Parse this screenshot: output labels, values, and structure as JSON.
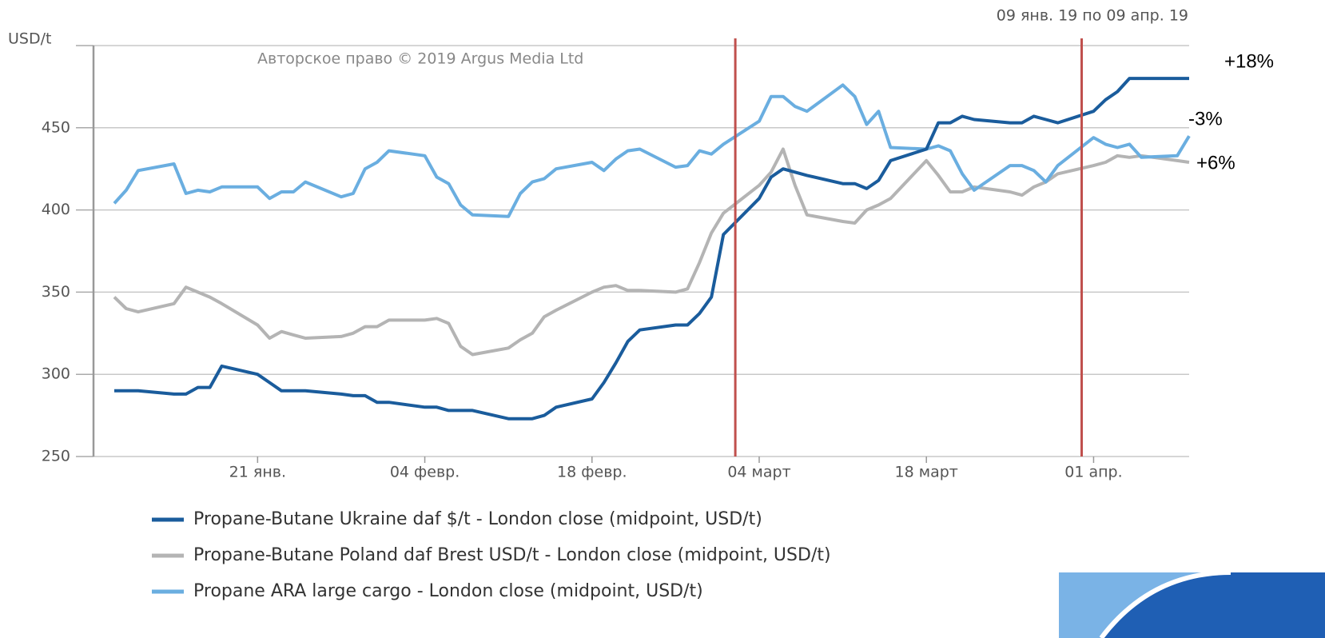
{
  "chart_data": {
    "type": "line",
    "subtitle": "09 янв. 19 по 09 апр. 19",
    "copyright": "Авторское право © 2019 Argus Media Ltd",
    "x": [
      "01-09",
      "01-10",
      "01-11",
      "01-14",
      "01-15",
      "01-16",
      "01-17",
      "01-18",
      "01-21",
      "01-22",
      "01-23",
      "01-24",
      "01-25",
      "01-28",
      "01-29",
      "01-30",
      "01-31",
      "02-01",
      "02-04",
      "02-05",
      "02-06",
      "02-07",
      "02-08",
      "02-11",
      "02-12",
      "02-13",
      "02-14",
      "02-15",
      "02-18",
      "02-19",
      "02-20",
      "02-21",
      "02-22",
      "02-25",
      "02-26",
      "02-27",
      "02-28",
      "03-01",
      "03-04",
      "03-05",
      "03-06",
      "03-07",
      "03-08",
      "03-11",
      "03-12",
      "03-13",
      "03-14",
      "03-15",
      "03-18",
      "03-19",
      "03-20",
      "03-21",
      "03-22",
      "03-25",
      "03-26",
      "03-27",
      "03-28",
      "03-29",
      "04-01",
      "04-02",
      "04-03",
      "04-04",
      "04-05",
      "04-08",
      "04-09"
    ],
    "xlim": [
      "01-09",
      "04-09"
    ],
    "xticks": [
      {
        "value": "01-21",
        "label": "21 янв."
      },
      {
        "value": "02-04",
        "label": "04 февр."
      },
      {
        "value": "02-18",
        "label": "18 февр."
      },
      {
        "value": "03-04",
        "label": "04 март"
      },
      {
        "value": "03-18",
        "label": "18 март"
      },
      {
        "value": "04-01",
        "label": "01 апр."
      }
    ],
    "ylim": [
      250,
      500
    ],
    "yticks": [
      250,
      300,
      350,
      400,
      450,
      {
        "value": 500,
        "label": "USD/t"
      }
    ],
    "grid": true,
    "series": [
      {
        "name": "Propane-Butane Ukraine daf $/t - London close (midpoint, USD/t)",
        "color": "#1a5c9c",
        "values": [
          290,
          290,
          290,
          288,
          288,
          292,
          292,
          305,
          300,
          295,
          290,
          290,
          290,
          288,
          287,
          287,
          283,
          283,
          280,
          280,
          278,
          278,
          278,
          273,
          273,
          273,
          275,
          280,
          285,
          295,
          307,
          320,
          327,
          330,
          330,
          337,
          347,
          385,
          407,
          420,
          425,
          423,
          421,
          416,
          416,
          413,
          418,
          430,
          437,
          453,
          453,
          457,
          455,
          453,
          453,
          457,
          455,
          453,
          460,
          467,
          472,
          480,
          480,
          480,
          480
        ]
      },
      {
        "name": "Propane-Butane Poland daf Brest USD/t - London close (midpoint, USD/t)",
        "color": "#b4b4b4",
        "values": [
          347,
          340,
          338,
          343,
          353,
          350,
          347,
          343,
          330,
          322,
          326,
          324,
          322,
          323,
          325,
          329,
          329,
          333,
          333,
          334,
          331,
          317,
          312,
          316,
          321,
          325,
          335,
          339,
          350,
          353,
          354,
          351,
          351,
          350,
          352,
          368,
          386,
          398,
          415,
          423,
          437,
          415,
          397,
          393,
          392,
          400,
          403,
          407,
          430,
          421,
          411,
          411,
          414,
          411,
          409,
          414,
          417,
          422,
          427,
          429,
          433,
          432,
          433,
          430,
          429
        ]
      },
      {
        "name": "Propane ARA large cargo - London close (midpoint, USD/t)",
        "color": "#6aaee0",
        "values": [
          404,
          412,
          424,
          428,
          410,
          412,
          411,
          414,
          414,
          407,
          411,
          411,
          417,
          408,
          410,
          425,
          429,
          436,
          433,
          420,
          416,
          403,
          397,
          396,
          410,
          417,
          419,
          425,
          429,
          424,
          431,
          436,
          437,
          426,
          427,
          436,
          434,
          440,
          454,
          469,
          469,
          463,
          460,
          476,
          469,
          452,
          460,
          438,
          437,
          439,
          436,
          422,
          412,
          427,
          427,
          424,
          417,
          427,
          444,
          440,
          438,
          440,
          432,
          433,
          445
        ]
      }
    ],
    "reference_lines": [
      {
        "x": "03-02",
        "color": "#c0504d"
      },
      {
        "x": "03-31",
        "color": "#c0504d"
      }
    ],
    "annotations": [
      "+18%",
      "-3%",
      "+6%"
    ]
  }
}
